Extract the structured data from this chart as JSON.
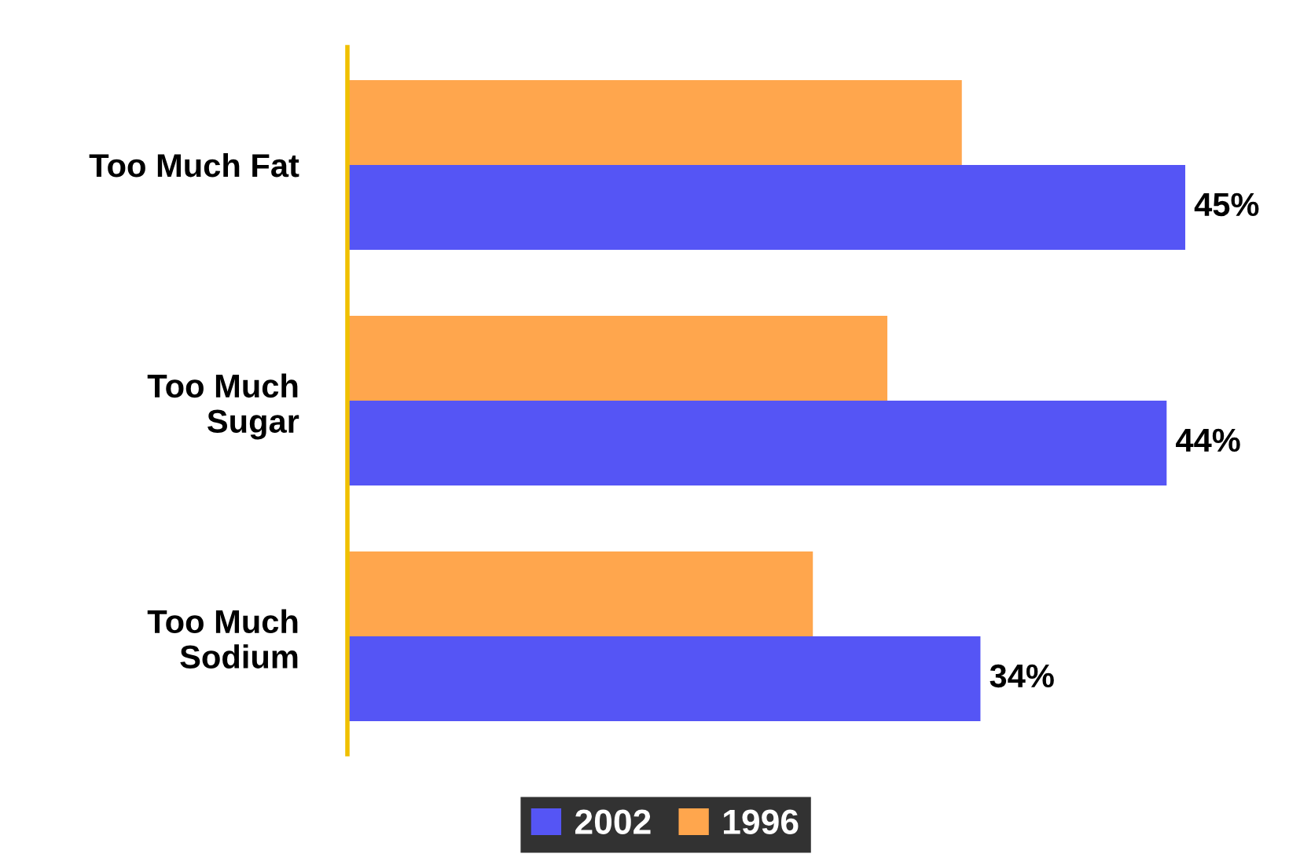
{
  "chart_data": {
    "type": "bar",
    "orientation": "horizontal",
    "categories": [
      "Too Much Fat",
      "Too Much\nSugar",
      "Too Much\nSodium"
    ],
    "series": [
      {
        "name": "1996",
        "color": "#ffa64d",
        "values": [
          33,
          29,
          25
        ]
      },
      {
        "name": "2002",
        "color": "#5555f5",
        "values": [
          45,
          44,
          34
        ],
        "value_labels": [
          "45%",
          "44%",
          "34%"
        ]
      }
    ],
    "tick_labels": "y",
    "grid": false,
    "legend": "bottom"
  }
}
